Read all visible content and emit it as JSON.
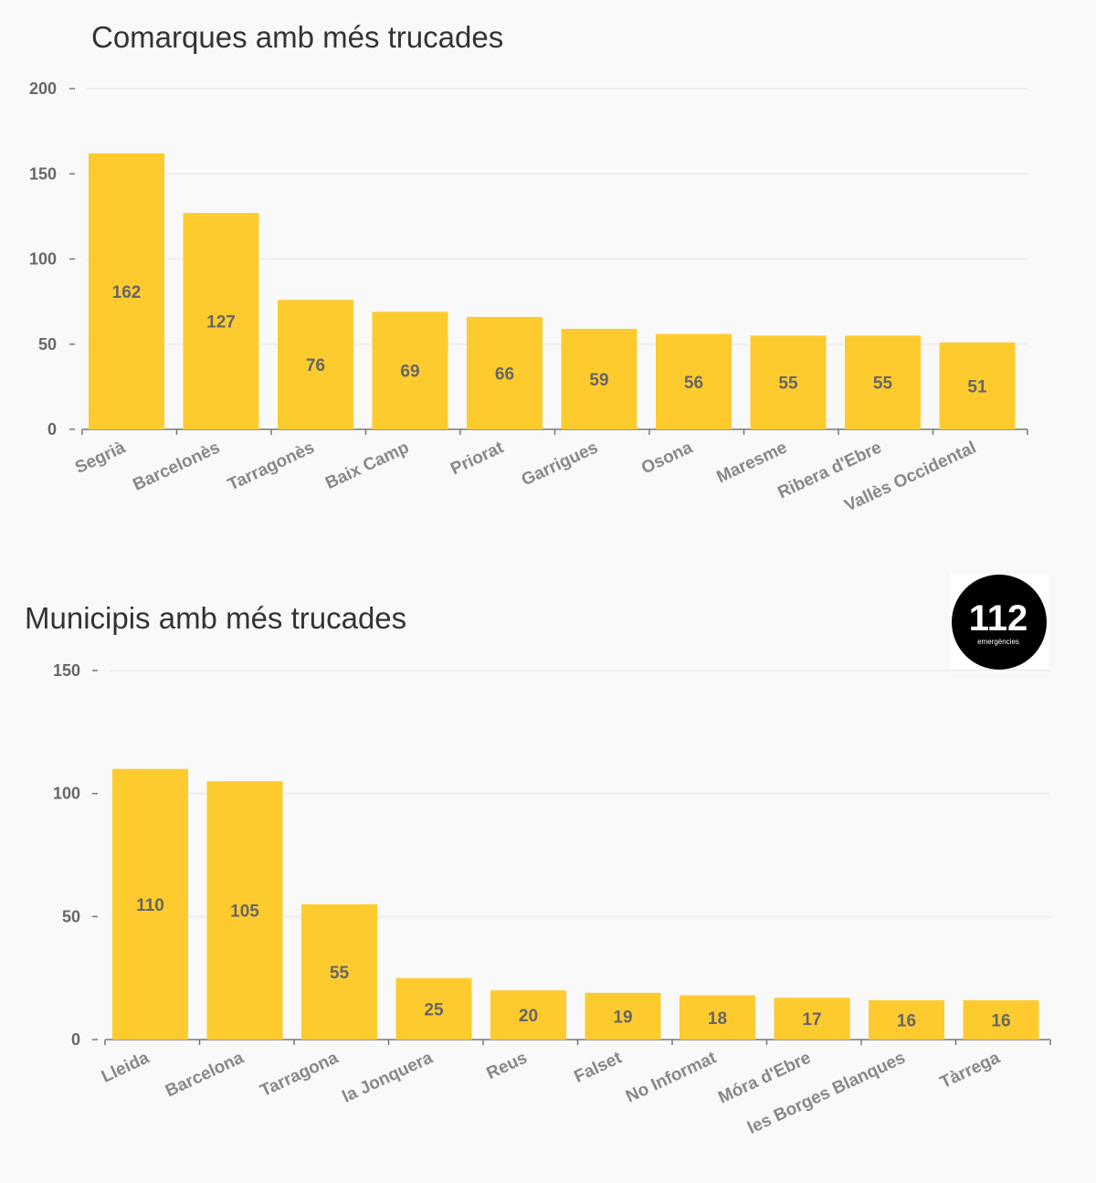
{
  "logo": {
    "number": "112",
    "text": "emergències"
  },
  "chart_data": [
    {
      "type": "bar",
      "title": "Comarques amb més trucades",
      "xlabel": "",
      "ylabel": "",
      "ylim": [
        0,
        200
      ],
      "yticks": [
        0,
        50,
        100,
        150,
        200
      ],
      "grid": true,
      "categories": [
        "Segrià",
        "Barcelonès",
        "Tarragonès",
        "Baix Camp",
        "Priorat",
        "Garrigues",
        "Osona",
        "Maresme",
        "Ribera d'Ebre",
        "Vallès Occidental"
      ],
      "values": [
        162,
        127,
        76,
        69,
        66,
        59,
        56,
        55,
        55,
        51
      ],
      "color": "#fecb2f"
    },
    {
      "type": "bar",
      "title": "Municipis amb més trucades",
      "xlabel": "",
      "ylabel": "",
      "ylim": [
        0,
        150
      ],
      "yticks": [
        0,
        50,
        100,
        150
      ],
      "grid": true,
      "categories": [
        "Lleida",
        "Barcelona",
        "Tarragona",
        "la Jonquera",
        "Reus",
        "Falset",
        "No Informat",
        "Móra d'Ebre",
        "les Borges Blanques",
        "Tàrrega"
      ],
      "values": [
        110,
        105,
        55,
        25,
        20,
        19,
        18,
        17,
        16,
        16
      ],
      "color": "#fecb2f"
    }
  ]
}
